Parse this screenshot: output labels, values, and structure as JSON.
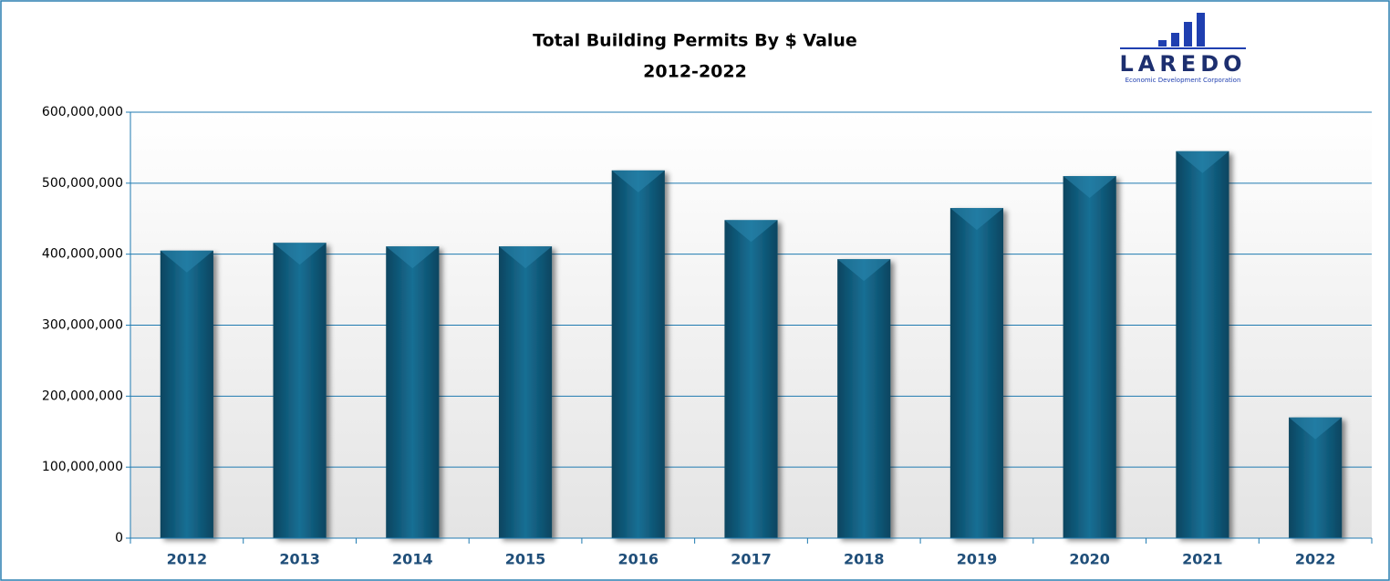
{
  "chart_data": {
    "type": "bar",
    "title": "Total Building Permits By $ Value",
    "subtitle": "2012-2022",
    "categories": [
      "2012",
      "2013",
      "2014",
      "2015",
      "2016",
      "2017",
      "2018",
      "2019",
      "2020",
      "2021",
      "2022"
    ],
    "values": [
      405000000,
      416000000,
      411000000,
      411000000,
      518000000,
      448000000,
      393000000,
      465000000,
      510000000,
      545000000,
      170000000
    ],
    "color": "#0e5878",
    "ylim": [
      0,
      600000000
    ],
    "yticks": [
      0,
      {
        "value": 100000000,
        "label": "100,000,000"
      },
      {
        "value": 200000000,
        "label": "200,000,000"
      },
      {
        "value": 300000000,
        "label": "300,000,000"
      },
      {
        "value": 400000000,
        "label": "400,000,000"
      },
      {
        "value": 500000000,
        "label": "500,000,000"
      },
      {
        "value": 600000000,
        "label": "600,000,000"
      }
    ],
    "grid": true
  },
  "logo": {
    "name": "LAREDO",
    "tagline": "Economic Development Corporation"
  }
}
